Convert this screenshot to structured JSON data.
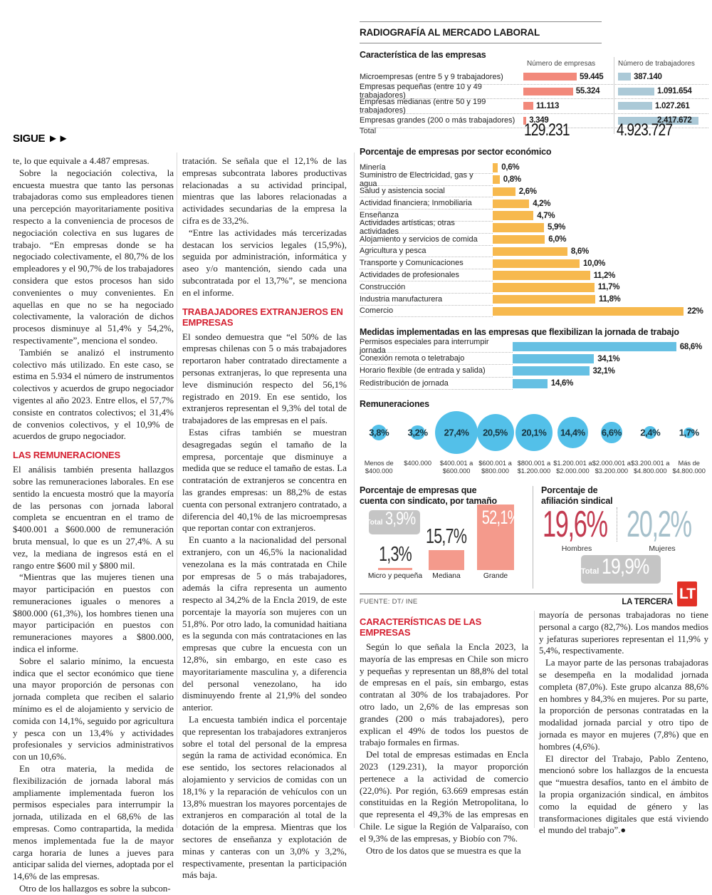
{
  "kicker": {
    "label": "SIGUE",
    "arrows": "►►"
  },
  "article": {
    "col1": [
      {
        "k": "p",
        "ind": 0,
        "t": "te, lo que equivale a 4.487 empresas."
      },
      {
        "k": "p",
        "ind": 1,
        "t": "Sobre la negociación colectiva, la encuesta muestra que tanto las personas trabajadoras como sus empleadores tienen una percepción mayoritariamente positiva respecto a la conveniencia de procesos de negociación colectiva en sus lugares de trabajo. “En empresas donde se ha negociado colectivamente, el 80,7% de los empleadores y el 90,7% de los trabajadores considera que estos procesos han sido convenientes o muy convenientes. En aquellas en que no se ha negociado colectivamente, la valoración de dichos procesos disminuye al 51,4% y 54,2%, respectivamente”, menciona el sondeo."
      },
      {
        "k": "p",
        "ind": 1,
        "t": "También se analizó el instrumento colectivo más utilizado. En este caso, se estima en 5.934 el número de instrumentos colectivos y acuerdos de grupo negociador vigentes al año 2023. Entre ellos, el 57,7% consiste en contratos colectivos; el 31,4% de convenios colectivos, y el 10,9% de acuerdos de grupo negociador."
      },
      {
        "k": "h",
        "t": "LAS REMUNERACIONES"
      },
      {
        "k": "p",
        "ind": 0,
        "t": "El análisis también presenta hallazgos sobre las remuneraciones laborales. En ese sentido la encuesta mostró que la mayoría de las personas con jornada laboral completa se encuentran en el tramo de $400.001 a $600.000 de remuneración bruta mensual, lo que es un 27,4%. A su vez, la mediana de ingresos está en el rango entre $600 mil y $800 mil."
      },
      {
        "k": "p",
        "ind": 1,
        "t": "“Mientras que las mujeres tienen una mayor participación en puestos con remuneraciones iguales o menores a $800.000 (61,3%), los hombres tienen una mayor participación en puestos con remuneraciones mayores a $800.000, indica el informe."
      },
      {
        "k": "p",
        "ind": 1,
        "t": "Sobre el salario mínimo, la encuesta indica que el sector económico que tiene una mayor proporción de personas con jornada completa que reciben el salario mínimo es el de alojamiento y servicio de comida con 14,1%, seguido por agricultura y pesca con un 13,4% y actividades profesionales y servicios administrativos con un 10,6%."
      },
      {
        "k": "p",
        "ind": 1,
        "t": "En otra materia, la medida de flexibilización de jornada laboral más ampliamente implementada fueron los permisos especiales para interrumpir la jornada, utilizada en el 68,6% de las empresas. Como contrapartida, la medida menos implementada fue la de mayor carga horaria de lunes a jueves para anticipar salida del viernes, adoptada por el 14,6% de las empresas."
      },
      {
        "k": "p",
        "ind": 1,
        "t": "Otro de los hallazgos es sobre la subcon-"
      }
    ],
    "col2": [
      {
        "k": "p",
        "ind": 0,
        "t": "tratación. Se señala que el 12,1% de las empresas subcontrata labores productivas relacionadas a su actividad principal, mientras que las labores relacionadas a actividades secundarias de la empresa la cifra es de 33,2%."
      },
      {
        "k": "p",
        "ind": 1,
        "t": "“Entre las actividades más tercerizadas destacan los servicios legales (15,9%), seguida por administración, informática y aseo y/o mantención, siendo cada una subcontratada por el 13,7%”, se menciona en el informe."
      },
      {
        "k": "h",
        "t": "TRABAJADORES EXTRANJEROS EN EMPRESAS"
      },
      {
        "k": "p",
        "ind": 0,
        "t": "El sondeo demuestra que “el 50% de las empresas chilenas con 5 o más trabajadores reportaron haber contratado directamente a personas extranjeras, lo que representa una leve disminución respecto del 56,1% registrado en 2019. En ese sentido, los extranjeros representan el 9,3% del total de trabajadores de las empresas en el país."
      },
      {
        "k": "p",
        "ind": 1,
        "t": "Estas cifras también se muestran desagregadas según el tamaño de la empresa, porcentaje que disminuye a medida que se reduce el tamaño de estas. La contratación de extranjeros se concentra en las grandes empresas: un 88,2% de estas cuenta con personal extranjero contratado, a diferencia del 40,1% de las microempresas que reportan contar con extranjeros."
      },
      {
        "k": "p",
        "ind": 1,
        "t": "En cuanto a la nacionalidad del personal extranjero, con un 46,5% la nacionalidad venezolana es la más contratada en Chile por empresas de 5 o más trabajadores, además la cifra representa un aumento respecto al 34,2% de la Encla 2019, de este porcentaje la mayoría son mujeres con un 51,8%. Por otro lado, la comunidad haitiana es la segunda con más contrataciones en las empresas que cubre la encuesta con un 12,8%, sin embargo, en este caso es mayoritariamente masculina y, a diferencia del personal venezolano, ha ido disminuyendo frente al 21,9% del sondeo anterior."
      },
      {
        "k": "p",
        "ind": 1,
        "t": "La encuesta también indica el porcentaje que representan los trabajadores extranjeros sobre el total del personal de la empresa según la rama de actividad económica. En ese sentido, los sectores relacionados al alojamiento y servicios de comidas con un 18,1% y la reparación de vehículos con un 13,8% muestran los mayores porcentajes de extranjeros en comparación al total de la dotación de la empresa. Mientras que los sectores de enseñanza y explotación de minas y canteras con un 3,0% y 3,2%, respectivamente, presentan la participación más baja."
      }
    ],
    "col3": [
      {
        "k": "h",
        "t": "CARACTERÍSTICAS DE LAS EMPRESAS"
      },
      {
        "k": "p",
        "ind": 1,
        "t": "Según lo que señala la Encla 2023, la mayoría de las empresas en Chile son micro y pequeñas y representan un 88,8% del total de empresas en el país, sin embargo, estas contratan al 30% de los trabajadores. Por otro lado, un 2,6% de las empresas son grandes (200 o más trabajadores), pero explican el 49% de todos los puestos de trabajo formales en firmas."
      },
      {
        "k": "p",
        "ind": 1,
        "t": "Del total de empresas estimadas en Encla 2023 (129.231), la mayor proporción pertenece a la actividad de comercio (22,0%). Por región, 63.669 empresas están constituidas en la Región Metropolitana, lo que representa el 49,3% de las empresas en Chile. Le sigue la Región de Valparaíso, con el 9,3% de las empresas, y Biobío con 7%."
      },
      {
        "k": "p",
        "ind": 1,
        "t": "Otro de los datos que se muestra es que la"
      }
    ],
    "col4": [
      {
        "k": "p",
        "ind": 0,
        "t": "mayoría de personas trabajadoras no tiene personal a cargo (82,7%). Los mandos medios y jefaturas superiores representan el 11,9% y 5,4%, respectivamente."
      },
      {
        "k": "p",
        "ind": 1,
        "t": "La mayor parte de las personas trabajadoras se desempeña en la modalidad jornada completa (87,0%). Este grupo alcanza 88,6% en hombres y 84,3% en mujeres. Por su parte, la proporción de personas contratadas en la modalidad jornada parcial y otro tipo de jornada es mayor en mujeres (7,8%) que en hombres (4,6%)."
      },
      {
        "k": "p",
        "ind": 1,
        "t": "El director del Trabajo, Pablo Zenteno, mencionó sobre los hallazgos de la encuesta que “muestra desafíos, tanto en el ámbito de la propia organización sindical, en ámbitos como la equidad de género y las transformaciones digitales que está viviendo el mundo del trabajo”.●"
      }
    ]
  },
  "infographic": {
    "title": "RADIOGRAFÍA AL MERCADO LABORAL",
    "empresas": {
      "title": "Característica de las empresas",
      "col_empresas": "Número de empresas",
      "col_trabajadores": "Número de trabajadores",
      "rows": [
        {
          "label": "Microempresas (entre 5 y 9 trabajadores)",
          "empresas": "59.445",
          "empresas_v": 59445,
          "trabajadores": "387.140",
          "trabajadores_v": 387140
        },
        {
          "label": "Empresas pequeñas (entre 10 y 49 trabajadores)",
          "empresas": "55.324",
          "empresas_v": 55324,
          "trabajadores": "1.091.654",
          "trabajadores_v": 1091654
        },
        {
          "label": "Empresas medianas (entre 50 y 199 trabajadores)",
          "empresas": "11.113",
          "empresas_v": 11113,
          "trabajadores": "1.027.261",
          "trabajadores_v": 1027261
        },
        {
          "label": "Empresas grandes (200 o más trabajadores)",
          "empresas": "3.349",
          "empresas_v": 3349,
          "trabajadores": "2.417.672",
          "trabajadores_v": 2417672
        }
      ],
      "total_label": "Total",
      "total_empresas": "129.231",
      "total_trabajadores": "4.923.727"
    },
    "sectores": {
      "title": "Porcentaje de empresas por sector económico",
      "rows": [
        {
          "label": "Minería",
          "display": "0,6%",
          "v": 0.6
        },
        {
          "label": "Suministro de Electricidad, gas y agua",
          "display": "0,8%",
          "v": 0.8
        },
        {
          "label": "Salud y asistencia social",
          "display": "2,6%",
          "v": 2.6
        },
        {
          "label": "Actividad financiera; Inmobiliaria",
          "display": "4,2%",
          "v": 4.2
        },
        {
          "label": "Enseñanza",
          "display": "4,7%",
          "v": 4.7
        },
        {
          "label": "Actividades artísticas; otras actividades",
          "display": "5,9%",
          "v": 5.9
        },
        {
          "label": "Alojamiento y servicios de comida",
          "display": "6,0%",
          "v": 6.0
        },
        {
          "label": "Agricultura y pesca",
          "display": "8,6%",
          "v": 8.6
        },
        {
          "label": "Transporte y Comunicaciones",
          "display": "10,0%",
          "v": 10.0
        },
        {
          "label": "Actividades de profesionales",
          "display": "11,2%",
          "v": 11.2
        },
        {
          "label": "Construcción",
          "display": "11,7%",
          "v": 11.7
        },
        {
          "label": "Industria manufacturera",
          "display": "11,8%",
          "v": 11.8
        },
        {
          "label": "Comercio",
          "display": "22%",
          "v": 22.0
        }
      ]
    },
    "medidas": {
      "title": "Medidas implementadas en las empresas que  flexibilizan la jornada de trabajo",
      "rows": [
        {
          "label": "Permisos especiales para interrumpir jornada",
          "display": "68,6%",
          "v": 68.6
        },
        {
          "label": "Conexión remota o teletrabajo",
          "display": "34,1%",
          "v": 34.1
        },
        {
          "label": "Horario flexible (de entrada y salida)",
          "display": "32,1%",
          "v": 32.1
        },
        {
          "label": "Redistribución de jornada",
          "display": "14,6%",
          "v": 14.6
        }
      ]
    },
    "remuneraciones": {
      "title": "Remuneraciones",
      "items": [
        {
          "pct": "3,8%",
          "v": 3.8,
          "range": [
            "Menos de",
            "$400.000"
          ]
        },
        {
          "pct": "3,2%",
          "v": 3.2,
          "range": [
            "$400.000",
            ""
          ]
        },
        {
          "pct": "27,4%",
          "v": 27.4,
          "range": [
            "$400.001 a",
            "$600.000"
          ]
        },
        {
          "pct": "20,5%",
          "v": 20.5,
          "range": [
            "$600.001 a",
            "$800.000"
          ]
        },
        {
          "pct": "20,1%",
          "v": 20.1,
          "range": [
            "$800.001 a",
            "$1.200.000"
          ]
        },
        {
          "pct": "14,4%",
          "v": 14.4,
          "range": [
            "$1.200.001 a",
            "$2.000.000"
          ]
        },
        {
          "pct": "6,6%",
          "v": 6.6,
          "range": [
            "$2.000.001 a",
            "$3.200.000"
          ]
        },
        {
          "pct": "2,4%",
          "v": 2.4,
          "range": [
            "$3.200.001 a",
            "$4.800.000"
          ]
        },
        {
          "pct": "1,7%",
          "v": 1.7,
          "range": [
            "Más de",
            "$4.800.000"
          ]
        }
      ]
    },
    "sindicato": {
      "title_l1": "Porcentaje de empresas que",
      "title_l2": "cuenta con sindicato, por tamaño",
      "total_label": "Total",
      "total_value": "3,9%",
      "bars": [
        {
          "label": "Micro y pequeña",
          "display": "1,3%",
          "v": 1.3
        },
        {
          "label": "Mediana",
          "display": "15,7%",
          "v": 15.7
        },
        {
          "label": "Grande",
          "display": "52,1%",
          "v": 52.1
        }
      ]
    },
    "afiliacion": {
      "title_l1": "Porcentaje de",
      "title_l2": "afiliación sindical",
      "hombres_value": "19,6%",
      "hombres_label": "Hombres",
      "mujeres_value": "20,2%",
      "mujeres_label": "Mujeres",
      "total_label": "Total",
      "total_value": "19,9%"
    },
    "fuente": "FUENTE: DT/ INE",
    "brand": "LA TERCERA",
    "logo": "LT"
  },
  "colors": {
    "salmon": "#f2897b",
    "salmon_light": "#f49a8c",
    "bluegray": "#abc9d7",
    "orange": "#f7b94e",
    "blue_bar": "#66c0e3",
    "bubble_blue": "#53c0e9",
    "headline_red": "#d41f30",
    "afil_red": "#c23a50",
    "afil_blue": "#a6c0cb",
    "badge_gray": "#c5c5c5",
    "logo_red": "#e23127"
  }
}
